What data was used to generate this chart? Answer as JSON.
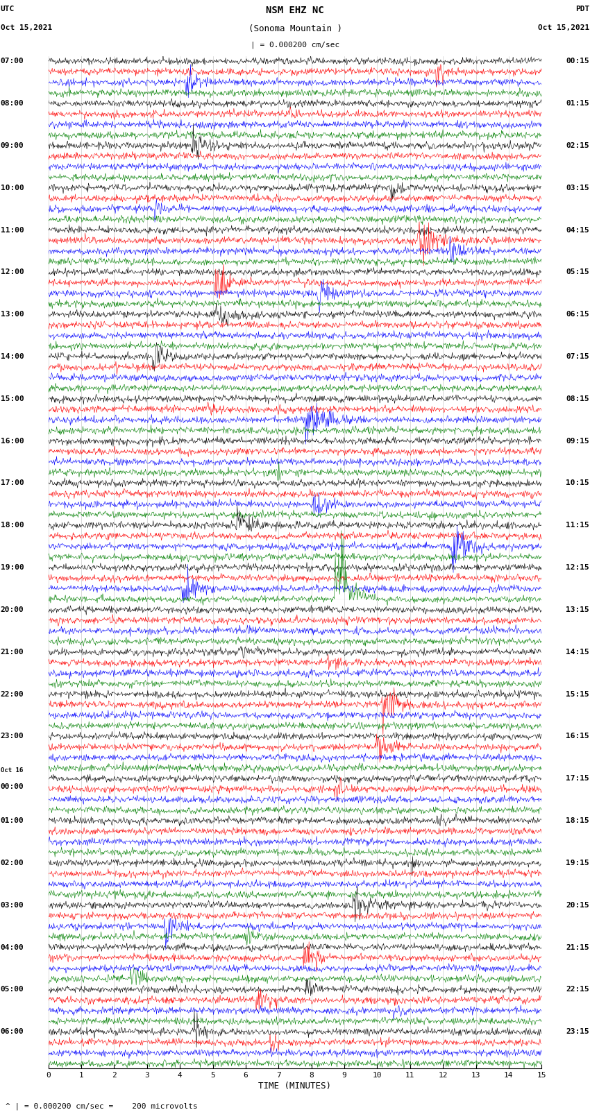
{
  "title_line1": "NSM EHZ NC",
  "title_line2": "(Sonoma Mountain )",
  "scale_label": "| = 0.000200 cm/sec",
  "left_date_line1": "UTC",
  "left_date_line2": "Oct 15,2021",
  "right_date_line1": "PDT",
  "right_date_line2": "Oct 15,2021",
  "xlabel": "TIME (MINUTES)",
  "bottom_label": "^ | = 0.000200 cm/sec =    200 microvolts",
  "bg_color": "#ffffff",
  "trace_colors": [
    "black",
    "red",
    "blue",
    "green"
  ],
  "n_rows": 96,
  "n_points": 900,
  "left_labels": [
    "07:00",
    "",
    "",
    "",
    "08:00",
    "",
    "",
    "",
    "09:00",
    "",
    "",
    "",
    "10:00",
    "",
    "",
    "",
    "11:00",
    "",
    "",
    "",
    "12:00",
    "",
    "",
    "",
    "13:00",
    "",
    "",
    "",
    "14:00",
    "",
    "",
    "",
    "15:00",
    "",
    "",
    "",
    "16:00",
    "",
    "",
    "",
    "17:00",
    "",
    "",
    "",
    "18:00",
    "",
    "",
    "",
    "19:00",
    "",
    "",
    "",
    "20:00",
    "",
    "",
    "",
    "21:00",
    "",
    "",
    "",
    "22:00",
    "",
    "",
    "",
    "23:00",
    "",
    "",
    "",
    "Oct 16\n00:00",
    "",
    "",
    "",
    "01:00",
    "",
    "",
    "",
    "02:00",
    "",
    "",
    "",
    "03:00",
    "",
    "",
    "",
    "04:00",
    "",
    "",
    "",
    "05:00",
    "",
    "",
    "",
    "06:00",
    "",
    "",
    ""
  ],
  "right_labels": [
    "00:15",
    "",
    "",
    "",
    "01:15",
    "",
    "",
    "",
    "02:15",
    "",
    "",
    "",
    "03:15",
    "",
    "",
    "",
    "04:15",
    "",
    "",
    "",
    "05:15",
    "",
    "",
    "",
    "06:15",
    "",
    "",
    "",
    "07:15",
    "",
    "",
    "",
    "08:15",
    "",
    "",
    "",
    "09:15",
    "",
    "",
    "",
    "10:15",
    "",
    "",
    "",
    "11:15",
    "",
    "",
    "",
    "12:15",
    "",
    "",
    "",
    "13:15",
    "",
    "",
    "",
    "14:15",
    "",
    "",
    "",
    "15:15",
    "",
    "",
    "",
    "16:15",
    "",
    "",
    "",
    "17:15",
    "",
    "",
    "",
    "18:15",
    "",
    "",
    "",
    "19:15",
    "",
    "",
    "",
    "20:15",
    "",
    "",
    "",
    "21:15",
    "",
    "",
    "",
    "22:15",
    "",
    "",
    "",
    "23:15",
    "",
    "",
    ""
  ],
  "xmin": 0,
  "xmax": 15,
  "xticks": [
    0,
    1,
    2,
    3,
    4,
    5,
    6,
    7,
    8,
    9,
    10,
    11,
    12,
    13,
    14,
    15
  ],
  "fig_width": 8.5,
  "fig_height": 16.13,
  "dpi": 100
}
